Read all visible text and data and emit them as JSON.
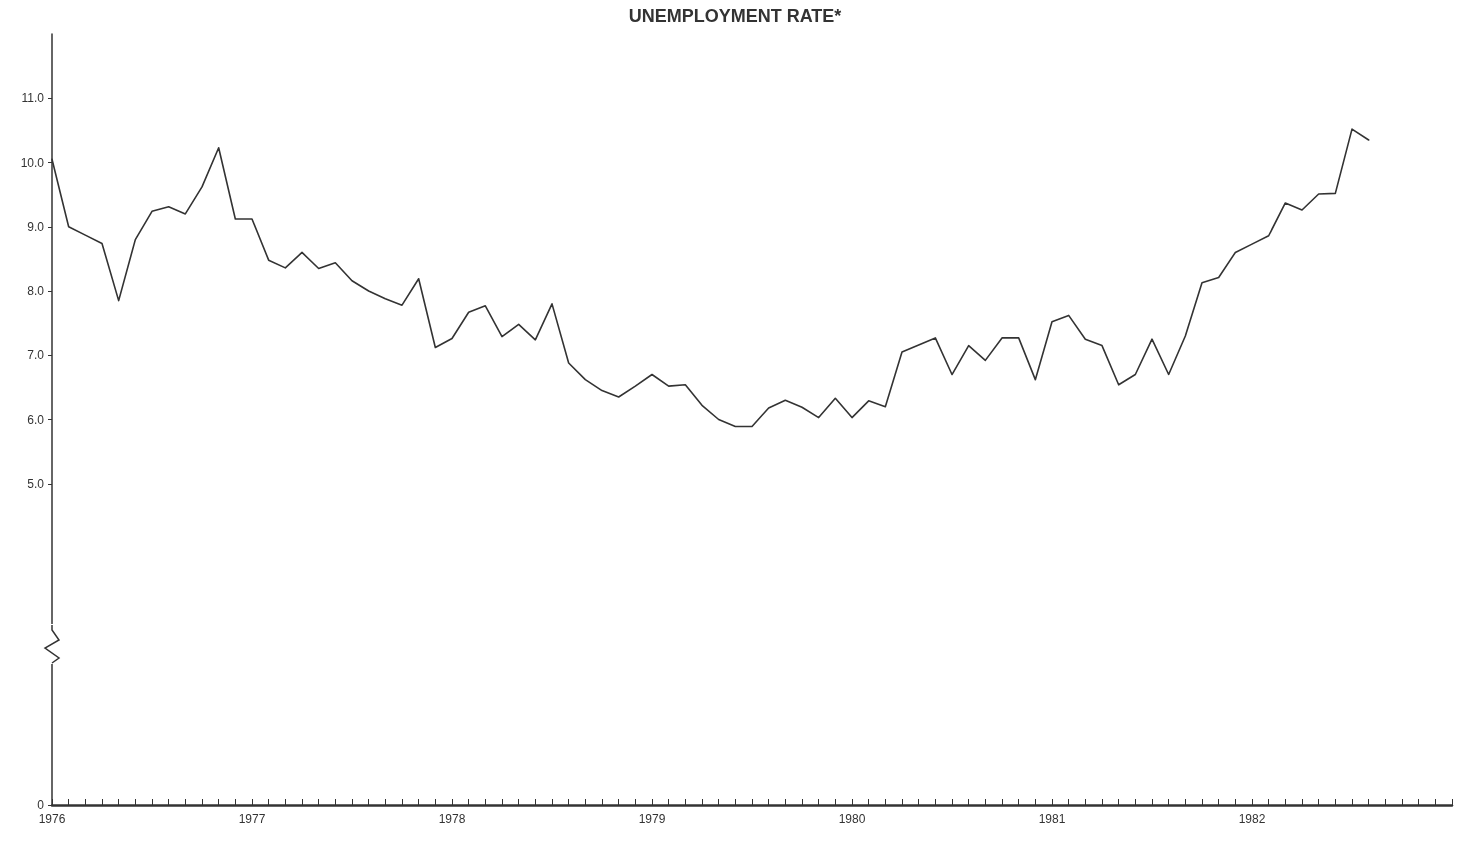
{
  "chart_data": {
    "type": "line",
    "title": "UNEMPLOYMENT RATE*",
    "x": [
      "1976-01",
      "1976-02",
      "1976-03",
      "1976-04",
      "1976-05",
      "1976-06",
      "1976-07",
      "1976-08",
      "1976-09",
      "1976-10",
      "1976-11",
      "1976-12",
      "1977-01",
      "1977-02",
      "1977-03",
      "1977-04",
      "1977-05",
      "1977-06",
      "1977-07",
      "1977-08",
      "1977-09",
      "1977-10",
      "1977-11",
      "1977-12",
      "1978-01",
      "1978-02",
      "1978-03",
      "1978-04",
      "1978-05",
      "1978-06",
      "1978-07",
      "1978-08",
      "1978-09",
      "1978-10",
      "1978-11",
      "1978-12",
      "1979-01",
      "1979-02",
      "1979-03",
      "1979-04",
      "1979-05",
      "1979-06",
      "1979-07",
      "1979-08",
      "1979-09",
      "1979-10",
      "1979-11",
      "1979-12",
      "1980-01",
      "1980-02",
      "1980-03",
      "1980-04",
      "1980-05",
      "1980-06",
      "1980-07",
      "1980-08",
      "1980-09",
      "1980-10",
      "1980-11",
      "1980-12",
      "1981-01",
      "1981-02",
      "1981-03",
      "1981-04",
      "1981-05",
      "1981-06",
      "1981-07",
      "1981-08",
      "1981-09",
      "1981-10",
      "1981-11",
      "1981-12",
      "1982-01",
      "1982-02",
      "1982-03",
      "1982-04",
      "1982-05",
      "1982-06",
      "1982-07",
      "1982-08"
    ],
    "series": [
      {
        "color": "#333333",
        "values": [
          10.05,
          9.0,
          8.87,
          8.74,
          7.85,
          8.8,
          9.24,
          9.31,
          9.2,
          9.62,
          10.23,
          9.12,
          9.12,
          8.48,
          8.36,
          8.6,
          8.35,
          8.44,
          8.16,
          8.0,
          7.88,
          7.78,
          8.19,
          7.12,
          7.26,
          7.67,
          7.77,
          7.29,
          7.48,
          7.24,
          7.8,
          6.88,
          6.62,
          6.45,
          6.35,
          6.52,
          6.7,
          6.52,
          6.54,
          6.22,
          6.0,
          5.89,
          5.89,
          6.18,
          6.3,
          6.19,
          6.03,
          6.33,
          6.03,
          6.29,
          6.2,
          7.05,
          7.16,
          7.27,
          6.7,
          7.15,
          6.92,
          7.27,
          7.27,
          6.62,
          7.52,
          7.62,
          7.25,
          7.15,
          6.54,
          6.7,
          7.25,
          6.7,
          7.3,
          8.13,
          8.21,
          8.6,
          8.73,
          8.86,
          9.37,
          9.26,
          9.51,
          9.52,
          10.52,
          10.35
        ]
      }
    ],
    "xlim": [
      "1976-01",
      "1983-01"
    ],
    "xticks": [
      {
        "value": "1976-01",
        "label": "1976"
      },
      {
        "value": "1976-02",
        "label": null
      },
      {
        "value": "1976-03",
        "label": null
      },
      {
        "value": "1976-04",
        "label": null
      },
      {
        "value": "1976-05",
        "label": null
      },
      {
        "value": "1976-06",
        "label": null
      },
      {
        "value": "1976-07",
        "label": null
      },
      {
        "value": "1976-08",
        "label": null
      },
      {
        "value": "1976-09",
        "label": null
      },
      {
        "value": "1976-10",
        "label": null
      },
      {
        "value": "1976-11",
        "label": null
      },
      {
        "value": "1976-12",
        "label": null
      },
      {
        "value": "1977-01",
        "label": "1977"
      },
      {
        "value": "1977-02",
        "label": null
      },
      {
        "value": "1977-03",
        "label": null
      },
      {
        "value": "1977-04",
        "label": null
      },
      {
        "value": "1977-05",
        "label": null
      },
      {
        "value": "1977-06",
        "label": null
      },
      {
        "value": "1977-07",
        "label": null
      },
      {
        "value": "1977-08",
        "label": null
      },
      {
        "value": "1977-09",
        "label": null
      },
      {
        "value": "1977-10",
        "label": null
      },
      {
        "value": "1977-11",
        "label": null
      },
      {
        "value": "1977-12",
        "label": null
      },
      {
        "value": "1978-01",
        "label": "1978"
      },
      {
        "value": "1978-02",
        "label": null
      },
      {
        "value": "1978-03",
        "label": null
      },
      {
        "value": "1978-04",
        "label": null
      },
      {
        "value": "1978-05",
        "label": null
      },
      {
        "value": "1978-06",
        "label": null
      },
      {
        "value": "1978-07",
        "label": null
      },
      {
        "value": "1978-08",
        "label": null
      },
      {
        "value": "1978-09",
        "label": null
      },
      {
        "value": "1978-10",
        "label": null
      },
      {
        "value": "1978-11",
        "label": null
      },
      {
        "value": "1978-12",
        "label": null
      },
      {
        "value": "1979-01",
        "label": "1979"
      },
      {
        "value": "1979-02",
        "label": null
      },
      {
        "value": "1979-03",
        "label": null
      },
      {
        "value": "1979-04",
        "label": null
      },
      {
        "value": "1979-05",
        "label": null
      },
      {
        "value": "1979-06",
        "label": null
      },
      {
        "value": "1979-07",
        "label": null
      },
      {
        "value": "1979-08",
        "label": null
      },
      {
        "value": "1979-09",
        "label": null
      },
      {
        "value": "1979-10",
        "label": null
      },
      {
        "value": "1979-11",
        "label": null
      },
      {
        "value": "1979-12",
        "label": null
      },
      {
        "value": "1980-01",
        "label": "1980"
      },
      {
        "value": "1980-02",
        "label": null
      },
      {
        "value": "1980-03",
        "label": null
      },
      {
        "value": "1980-04",
        "label": null
      },
      {
        "value": "1980-05",
        "label": null
      },
      {
        "value": "1980-06",
        "label": null
      },
      {
        "value": "1980-07",
        "label": null
      },
      {
        "value": "1980-08",
        "label": null
      },
      {
        "value": "1980-09",
        "label": null
      },
      {
        "value": "1980-10",
        "label": null
      },
      {
        "value": "1980-11",
        "label": null
      },
      {
        "value": "1980-12",
        "label": null
      },
      {
        "value": "1981-01",
        "label": "1981"
      },
      {
        "value": "1981-02",
        "label": null
      },
      {
        "value": "1981-03",
        "label": null
      },
      {
        "value": "1981-04",
        "label": null
      },
      {
        "value": "1981-05",
        "label": null
      },
      {
        "value": "1981-06",
        "label": null
      },
      {
        "value": "1981-07",
        "label": null
      },
      {
        "value": "1981-08",
        "label": null
      },
      {
        "value": "1981-09",
        "label": null
      },
      {
        "value": "1981-10",
        "label": null
      },
      {
        "value": "1981-11",
        "label": null
      },
      {
        "value": "1981-12",
        "label": null
      },
      {
        "value": "1982-01",
        "label": "1982"
      },
      {
        "value": "1982-02",
        "label": null
      },
      {
        "value": "1982-03",
        "label": null
      },
      {
        "value": "1982-04",
        "label": null
      },
      {
        "value": "1982-05",
        "label": null
      },
      {
        "value": "1982-06",
        "label": null
      },
      {
        "value": "1982-07",
        "label": null
      },
      {
        "value": "1982-08",
        "label": null
      },
      {
        "value": "1982-09",
        "label": null
      },
      {
        "value": "1982-10",
        "label": null
      },
      {
        "value": "1982-11",
        "label": null
      },
      {
        "value": "1982-12",
        "label": null
      },
      {
        "value": "1983-01",
        "label": null
      }
    ],
    "ylim": [
      0,
      12
    ],
    "yticks": [
      0,
      {
        "value": 5,
        "label": "5.0"
      },
      {
        "value": 6,
        "label": "6.0"
      },
      {
        "value": 7,
        "label": "7.0"
      },
      {
        "value": 8,
        "label": "8.0"
      },
      {
        "value": 9,
        "label": "9.0"
      },
      {
        "value": 10,
        "label": "10.0"
      },
      {
        "value": 11,
        "label": "11.0"
      }
    ],
    "grid": false,
    "marker": "none",
    "line_style": "solid"
  }
}
